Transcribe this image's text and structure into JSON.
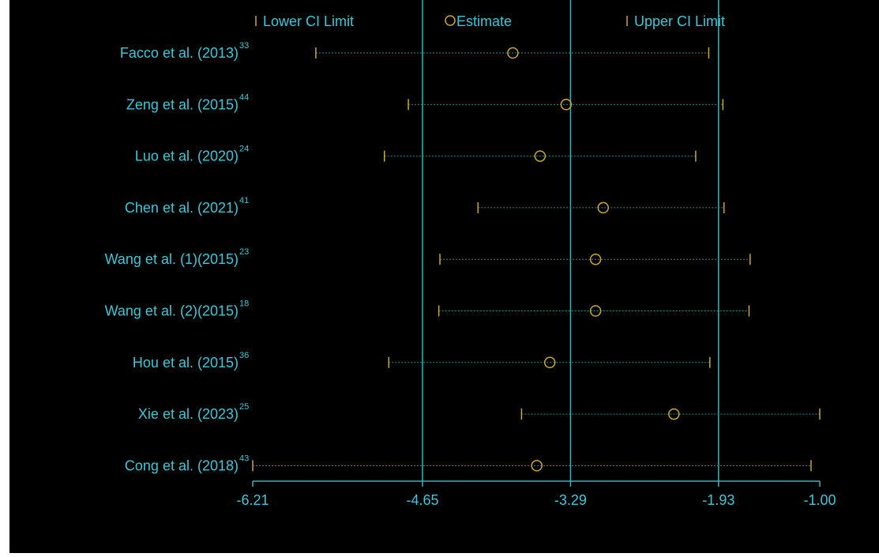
{
  "chart_data": {
    "type": "forest",
    "legend": [
      {
        "label": "Lower CI Limit",
        "symbol": "tick",
        "color": "#c8a832"
      },
      {
        "label": "Estimate",
        "symbol": "circle",
        "color": "#c8a832"
      },
      {
        "label": "Upper CI Limit",
        "symbol": "tick",
        "color": "#c8a832"
      }
    ],
    "x_ticks": [
      -6.21,
      -4.65,
      -3.29,
      -1.93,
      -1.0
    ],
    "x_tick_labels": [
      "-6.21",
      "-4.65",
      "-3.29",
      "-1.93",
      "-1.00"
    ],
    "reference_lines": [
      -4.65,
      -3.29,
      -1.93
    ],
    "xlim": [
      -6.21,
      -1.0
    ],
    "studies": [
      {
        "label": "Facco et al. (2013)",
        "ref": "33",
        "lower": -5.63,
        "estimate": -3.82,
        "upper": -2.02
      },
      {
        "label": "Zeng et al. (2015)",
        "ref": "44",
        "lower": -4.78,
        "estimate": -3.33,
        "upper": -1.89
      },
      {
        "label": "Luo et al. (2020)",
        "ref": "24",
        "lower": -5.0,
        "estimate": -3.57,
        "upper": -2.14
      },
      {
        "label": "Chen et al. (2021)",
        "ref": "41",
        "lower": -4.14,
        "estimate": -2.99,
        "upper": -1.88
      },
      {
        "label": "Wang et al. (1)(2015)",
        "ref": "23",
        "lower": -4.49,
        "estimate": -3.06,
        "upper": -1.64
      },
      {
        "label": "Wang et al. (2)(2015)",
        "ref": "18",
        "lower": -4.5,
        "estimate": -3.06,
        "upper": -1.65
      },
      {
        "label": "Hou et al. (2015)",
        "ref": "36",
        "lower": -4.96,
        "estimate": -3.48,
        "upper": -2.01
      },
      {
        "label": "Xie et al. (2023)",
        "ref": "25",
        "lower": -3.74,
        "estimate": -2.34,
        "upper": -1.0
      },
      {
        "label": "Cong et al. (2018)",
        "ref": "43",
        "lower": -6.21,
        "estimate": -3.6,
        "upper": -1.08
      }
    ]
  },
  "colors": {
    "background": "#000000",
    "axis": "#2fb8b8",
    "label_text": "#3cc8d8",
    "ci": "#c8a832",
    "ci_dotted": "#2a8f8f"
  }
}
